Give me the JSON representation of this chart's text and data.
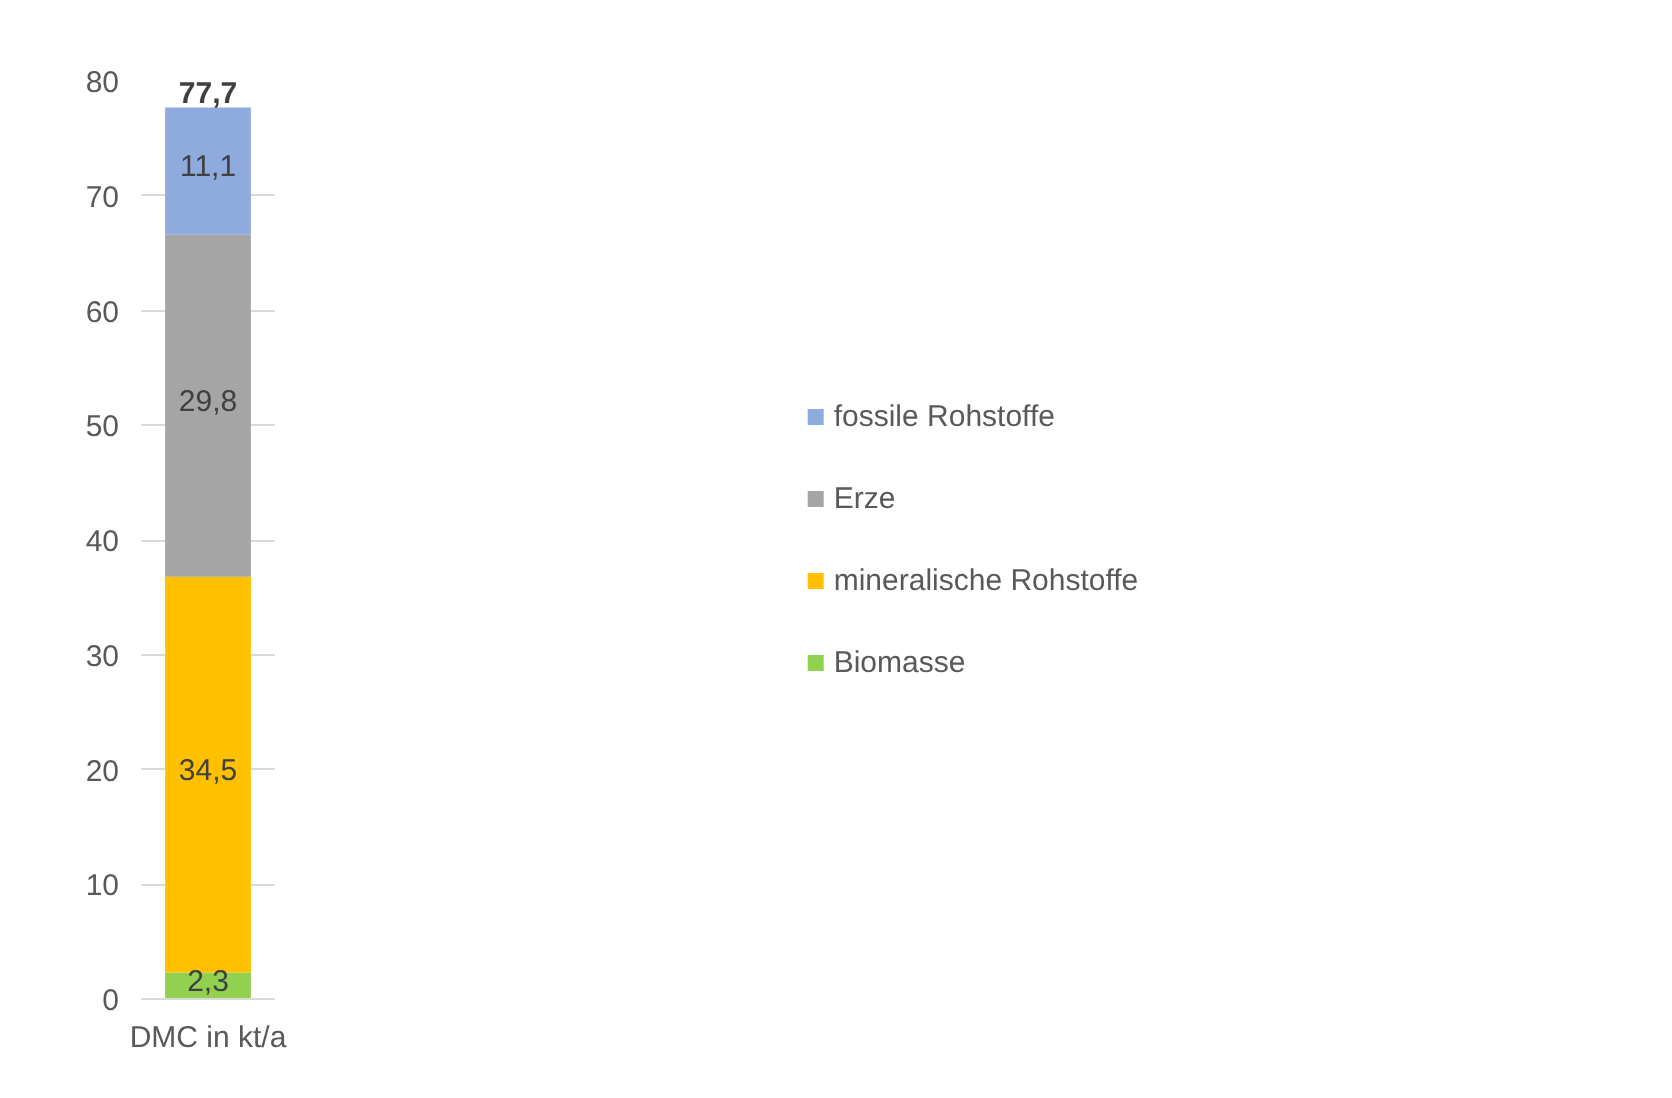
{
  "chart_data": {
    "type": "bar",
    "stacked": true,
    "categories": [
      "DMC in kt/a"
    ],
    "series": [
      {
        "name": "Biomasse",
        "color": "#92d050",
        "values": [
          2.3
        ],
        "value_labels": [
          "2,3"
        ]
      },
      {
        "name": "mineralische Rohstoffe",
        "color": "#ffc000",
        "values": [
          34.5
        ],
        "value_labels": [
          "34,5"
        ]
      },
      {
        "name": "Erze",
        "color": "#a5a5a5",
        "values": [
          29.8
        ],
        "value_labels": [
          "29,8"
        ]
      },
      {
        "name": "fossile Rohstoffe",
        "color": "#8faadc",
        "values": [
          11.1
        ],
        "value_labels": [
          "11,1"
        ]
      }
    ],
    "totals": [
      "77,7"
    ],
    "ylim": [
      0,
      80
    ],
    "yticks": [
      0,
      10,
      20,
      30,
      40,
      50,
      60,
      70,
      80
    ],
    "grid": "y",
    "legend": "right"
  }
}
